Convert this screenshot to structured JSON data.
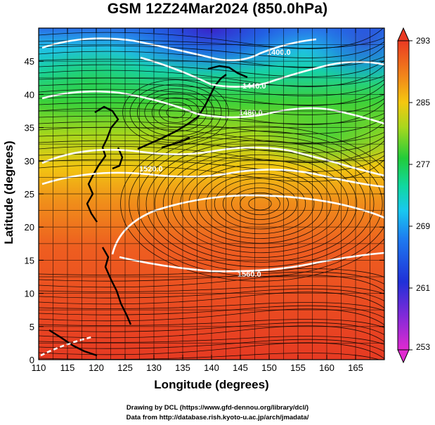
{
  "title": "GSM 12Z24Mar2024 (850.0hPa)",
  "x_axis": {
    "label": "Longitude (degrees)",
    "range": [
      110,
      170
    ],
    "ticks": [
      110,
      115,
      120,
      125,
      130,
      135,
      140,
      145,
      150,
      155,
      160,
      165
    ],
    "tick_labels": [
      "110",
      "115",
      "120",
      "125",
      "130",
      "135",
      "140",
      "145",
      "150",
      "155",
      "160",
      "165"
    ]
  },
  "y_axis": {
    "label": "Latitude  (degrees)",
    "range": [
      0,
      50
    ],
    "ticks": [
      0,
      5,
      10,
      15,
      20,
      25,
      30,
      35,
      40,
      45
    ],
    "tick_labels": [
      "0",
      "5",
      "10",
      "15",
      "20",
      "25",
      "30",
      "35",
      "40",
      "45"
    ]
  },
  "colorbar": {
    "min": 253,
    "max": 293,
    "tick_labels": [
      "293",
      "285",
      "277",
      "269",
      "261",
      "253"
    ],
    "tick_values": [
      293,
      285,
      277,
      269,
      261,
      253
    ]
  },
  "contours": {
    "labels": [
      "1400.0",
      "1440.0",
      "1480.0",
      "1520.0",
      "1560.0"
    ]
  },
  "colors": {
    "contour": "#ffffff",
    "coastline": "#000000",
    "streamline": "#000000"
  },
  "credits": {
    "line1": "Drawing by DCL (https://www.gfd-dennou.org/library/dcl/)",
    "line2": "Data from http://database.rish.kyoto-u.ac.jp/arch/jmadata/"
  }
}
